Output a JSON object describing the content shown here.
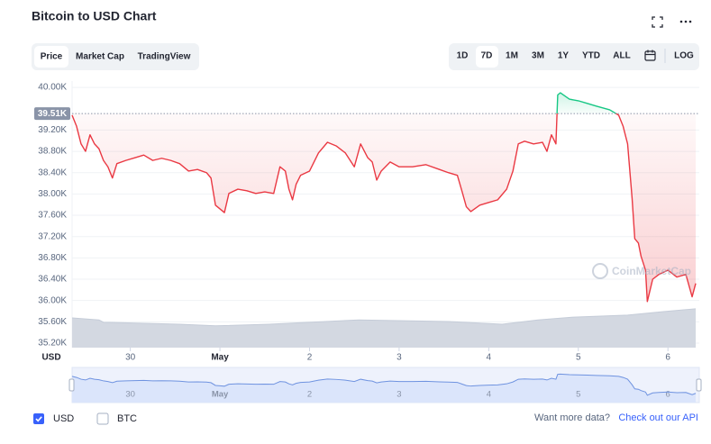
{
  "chart_data": {
    "type": "line",
    "title": "Bitcoin to USD Chart",
    "tabs": [
      "Price",
      "Market Cap",
      "TradingView"
    ],
    "ranges": [
      "1D",
      "7D",
      "1M",
      "3M",
      "1Y",
      "YTD",
      "ALL"
    ],
    "log_button": "LOG",
    "ylabel": "USD",
    "watermark": "CoinMarketCap",
    "colors": {
      "above": "#16c784",
      "below": "#ea3943",
      "volume": "#d3d8e1",
      "navigator": "#6f93e0"
    },
    "xlim": [
      29.35,
      36.35
    ],
    "xticks": [
      30,
      {
        "value": 31,
        "label": "May"
      },
      {
        "value": 32,
        "label": "2"
      },
      {
        "value": 33,
        "label": "3"
      },
      {
        "value": 34,
        "label": "4"
      },
      {
        "value": 35,
        "label": "5"
      },
      {
        "value": 36,
        "label": "6"
      }
    ],
    "ylim": [
      35115,
      40120
    ],
    "yticks": [
      {
        "value": 35200,
        "label": "35.20K"
      },
      {
        "value": 35600,
        "label": "35.60K"
      },
      {
        "value": 36000,
        "label": "36.00K"
      },
      {
        "value": 36400,
        "label": "36.40K"
      },
      {
        "value": 36800,
        "label": "36.80K"
      },
      {
        "value": 37200,
        "label": "37.20K"
      },
      {
        "value": 37600,
        "label": "37.60K"
      },
      {
        "value": 38000,
        "label": "38.00K"
      },
      {
        "value": 38400,
        "label": "38.40K"
      },
      {
        "value": 38800,
        "label": "38.80K"
      },
      {
        "value": 39200,
        "label": "39.20K"
      },
      {
        "value": 40000,
        "label": "40.00K"
      }
    ],
    "grid": true,
    "reference": {
      "value": 39510,
      "label": "39.51K"
    },
    "x": [
      29.35,
      29.4,
      29.45,
      29.5,
      29.55,
      29.6,
      29.65,
      29.7,
      29.75,
      29.8,
      29.85,
      29.95,
      30.05,
      30.15,
      30.25,
      30.35,
      30.45,
      30.55,
      30.65,
      30.75,
      30.85,
      30.9,
      30.95,
      31.0,
      31.05,
      31.1,
      31.2,
      31.3,
      31.4,
      31.5,
      31.6,
      31.67,
      31.73,
      31.77,
      31.81,
      31.85,
      31.9,
      32.0,
      32.1,
      32.2,
      32.3,
      32.4,
      32.5,
      32.57,
      32.65,
      32.7,
      32.75,
      32.8,
      32.9,
      33.0,
      33.15,
      33.3,
      33.45,
      33.55,
      33.65,
      33.7,
      33.75,
      33.8,
      33.9,
      34.0,
      34.1,
      34.2,
      34.27,
      34.33,
      34.4,
      34.5,
      34.6,
      34.65,
      34.7,
      34.75,
      34.77,
      34.8,
      34.9,
      35.0,
      35.1,
      35.2,
      35.35,
      35.45,
      35.5,
      35.55,
      35.6,
      35.63,
      35.67,
      35.7,
      35.75,
      35.77,
      35.83,
      35.9,
      36.0,
      36.1,
      36.2,
      36.27,
      36.31
    ],
    "values": [
      39480,
      39270,
      38940,
      38800,
      39110,
      38940,
      38850,
      38630,
      38510,
      38300,
      38570,
      38630,
      38680,
      38730,
      38630,
      38670,
      38630,
      38570,
      38430,
      38460,
      38400,
      38300,
      37790,
      37720,
      37650,
      38010,
      38090,
      38060,
      38010,
      38040,
      38010,
      38510,
      38430,
      38090,
      37890,
      38180,
      38350,
      38430,
      38770,
      38970,
      38900,
      38770,
      38510,
      38940,
      38680,
      38600,
      38260,
      38430,
      38600,
      38510,
      38510,
      38550,
      38460,
      38400,
      38350,
      38060,
      37760,
      37670,
      37790,
      37840,
      37890,
      38090,
      38430,
      38940,
      38990,
      38940,
      38970,
      38800,
      39110,
      38940,
      39860,
      39900,
      39780,
      39750,
      39700,
      39650,
      39580,
      39480,
      39270,
      38940,
      37920,
      37160,
      37080,
      36830,
      36570,
      35980,
      36400,
      36490,
      36570,
      36440,
      36490,
      36070,
      36320
    ],
    "volume": {
      "ylim": [
        0,
        100
      ],
      "x": [
        29.35,
        29.65,
        29.7,
        30.55,
        30.95,
        31.55,
        32.55,
        33.55,
        34.15,
        34.55,
        34.95,
        35.55,
        35.95,
        36.31
      ],
      "values": [
        75,
        70,
        64,
        59,
        55,
        59,
        70,
        66,
        59,
        70,
        77,
        82,
        91,
        98
      ]
    }
  },
  "controls": {
    "usd": "USD",
    "btc": "BTC",
    "more": "Want more data?",
    "api": "Check out our API"
  }
}
